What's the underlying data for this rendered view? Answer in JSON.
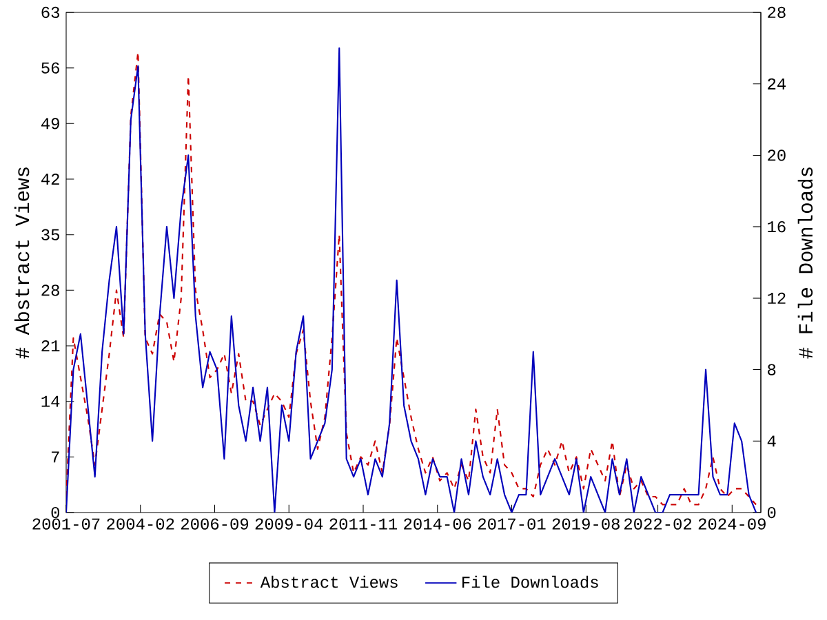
{
  "chart_data": {
    "type": "line",
    "x": [
      "2001-07",
      "2001-10",
      "2002-01",
      "2002-04",
      "2002-07",
      "2002-10",
      "2003-01",
      "2003-04",
      "2003-07",
      "2003-10",
      "2004-01",
      "2004-04",
      "2004-07",
      "2004-10",
      "2005-01",
      "2005-04",
      "2005-07",
      "2005-10",
      "2006-01",
      "2006-04",
      "2006-07",
      "2006-10",
      "2007-01",
      "2007-04",
      "2007-07",
      "2007-10",
      "2008-01",
      "2008-04",
      "2008-07",
      "2008-10",
      "2009-01",
      "2009-04",
      "2009-07",
      "2009-10",
      "2010-01",
      "2010-04",
      "2010-07",
      "2010-10",
      "2011-01",
      "2011-04",
      "2011-07",
      "2011-10",
      "2012-01",
      "2012-04",
      "2012-07",
      "2012-10",
      "2013-01",
      "2013-04",
      "2013-07",
      "2013-10",
      "2014-01",
      "2014-04",
      "2014-07",
      "2014-10",
      "2015-01",
      "2015-04",
      "2015-07",
      "2015-10",
      "2016-01",
      "2016-04",
      "2016-07",
      "2016-10",
      "2017-01",
      "2017-04",
      "2017-07",
      "2017-10",
      "2018-01",
      "2018-04",
      "2018-07",
      "2018-10",
      "2019-01",
      "2019-04",
      "2019-07",
      "2019-10",
      "2020-01",
      "2020-04",
      "2020-07",
      "2020-10",
      "2021-01",
      "2021-04",
      "2021-07",
      "2021-10",
      "2022-01",
      "2022-04",
      "2022-07",
      "2022-10",
      "2023-01",
      "2023-04",
      "2023-07",
      "2023-10",
      "2024-01",
      "2024-04",
      "2024-07",
      "2024-10",
      "2025-01",
      "2025-04",
      "2025-07"
    ],
    "series": [
      {
        "name": "Abstract Views",
        "color": "#cc0000",
        "line_style": "dashed",
        "values": [
          2,
          22,
          17,
          12,
          6,
          13,
          20,
          28,
          22,
          50,
          58,
          22,
          20,
          25,
          24,
          19,
          27,
          55,
          28,
          23,
          17,
          18,
          20,
          15,
          20,
          14,
          14,
          11,
          13,
          15,
          14,
          12,
          20,
          23,
          14,
          8,
          12,
          22,
          35,
          10,
          5,
          7,
          6,
          9,
          5,
          11,
          22,
          17,
          12,
          8,
          5,
          7,
          4,
          5,
          3,
          6,
          4,
          13,
          7,
          5,
          13,
          6,
          5,
          3,
          3,
          2,
          6,
          8,
          6,
          9,
          5,
          7,
          3,
          8,
          6,
          4,
          9,
          2,
          6,
          3,
          4,
          2,
          2,
          1,
          1,
          1,
          3,
          1,
          1,
          3,
          7,
          3,
          2,
          3,
          3,
          2,
          1
        ]
      },
      {
        "name": "File Downloads",
        "color": "#0000bb",
        "line_style": "solid",
        "axis": "y2",
        "values": [
          0,
          8,
          10,
          6,
          2,
          9,
          13,
          16,
          10,
          22,
          25,
          10,
          4,
          11,
          16,
          12,
          17,
          20,
          11,
          7,
          9,
          8,
          3,
          11,
          6,
          4,
          7,
          4,
          7,
          0,
          6,
          4,
          9,
          11,
          3,
          4,
          5,
          8,
          26,
          3,
          2,
          3,
          1,
          3,
          2,
          5,
          13,
          6,
          4,
          3,
          1,
          3,
          2,
          2,
          0,
          3,
          1,
          4,
          2,
          1,
          3,
          1,
          0,
          1,
          1,
          9,
          1,
          2,
          3,
          2,
          1,
          3,
          0,
          2,
          1,
          0,
          3,
          1,
          3,
          0,
          2,
          1,
          0,
          0,
          1,
          1,
          1,
          1,
          1,
          8,
          2,
          1,
          1,
          5,
          4,
          1,
          0
        ]
      }
    ],
    "xlim": [
      "2001-07",
      "2025-09"
    ],
    "xticks": [
      "2001-07",
      "2004-02",
      "2006-09",
      "2009-04",
      "2011-11",
      "2014-06",
      "2017-01",
      "2019-08",
      "2022-02",
      "2024-09"
    ],
    "ylim": [
      0,
      63
    ],
    "yticks": [
      0,
      7,
      14,
      21,
      28,
      35,
      42,
      49,
      56,
      63
    ],
    "y2lim": [
      0,
      28
    ],
    "y2ticks": [
      0,
      4,
      8,
      12,
      16,
      20,
      24,
      28
    ],
    "ylabel": "# Abstract Views",
    "y2label": "# File Downloads",
    "legend": "bottom",
    "grid": false,
    "marker": "none"
  }
}
